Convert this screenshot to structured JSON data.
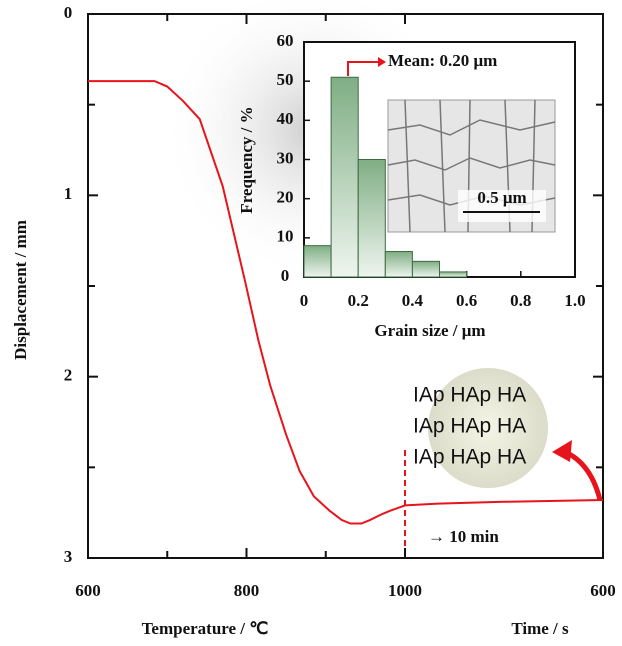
{
  "chart_data": [
    {
      "type": "line",
      "y_label": "Displacement / mm",
      "x_label": "Temperature / ℃",
      "x2_label": "Time / s",
      "xlim": [
        600,
        1000
      ],
      "xticks": [
        600,
        800,
        1000
      ],
      "xminor": [
        700,
        900
      ],
      "x2lim": [
        0,
        600
      ],
      "x2ticks": [
        600
      ],
      "ylim": [
        0,
        3
      ],
      "yticks": [
        0,
        1,
        2,
        3
      ],
      "yminor": [
        0.5,
        1.5,
        2.5
      ],
      "y_inverted": true,
      "series": [
        {
          "color": "#e8141c",
          "x": [
            600,
            640,
            684,
            700,
            720,
            741,
            770,
            798,
            815,
            830,
            850,
            867,
            885,
            905,
            920,
            931,
            945,
            956,
            970,
            981,
            1000
          ],
          "values": [
            0.37,
            0.37,
            0.37,
            0.4,
            0.48,
            0.58,
            0.95,
            1.47,
            1.8,
            2.05,
            2.32,
            2.52,
            2.66,
            2.74,
            2.79,
            2.81,
            2.81,
            2.79,
            2.76,
            2.74,
            2.71
          ]
        },
        {
          "color": "#e8141c",
          "axis": "x2",
          "x": [
            0,
            100,
            300,
            600
          ],
          "values": [
            2.71,
            2.7,
            2.69,
            2.68
          ]
        }
      ],
      "annotations": [
        "→ 10 min"
      ],
      "magnifier_rows": [
        "IAp HAp HA",
        "IAp HAp HA",
        "IAp HAp HA"
      ]
    },
    {
      "type": "histogram",
      "y_label": "Frequency / %",
      "x_label": "Grain size / μm",
      "bins": [
        0,
        0.1,
        0.2,
        0.3,
        0.4,
        0.5,
        0.6
      ],
      "values": [
        8,
        51,
        30,
        6.5,
        4,
        1.3
      ],
      "xlim": [
        0,
        1
      ],
      "xticks": [
        0,
        0.2,
        0.4,
        0.6,
        0.8,
        {
          "value": 1,
          "label": "1.0"
        }
      ],
      "ylim": [
        0,
        60
      ],
      "yticks": [
        0,
        10,
        20,
        30,
        40,
        50,
        60
      ],
      "annotations": [
        "Mean: 0.20 μm",
        "0.5 μm"
      ]
    }
  ]
}
